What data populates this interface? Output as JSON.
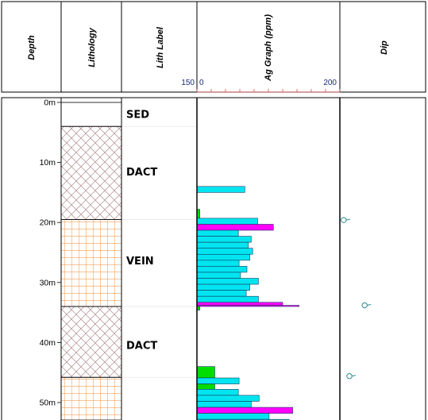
{
  "columns": {
    "depth": "Depth",
    "lithology": "Lithology",
    "lith_label": "Lith Label",
    "ag_graph": "Ag Graph (ppm)",
    "dip": "Dip"
  },
  "scale": {
    "lith_label_max": "150",
    "ag_min": "0",
    "ag_max": "200"
  },
  "colors": {
    "frame": "#000000",
    "dact_hatch": "#b08a8a",
    "vein_grid": "#f08a30",
    "bar_cyan": "#00e5f0",
    "bar_magenta": "#ff00ff",
    "bar_green": "#00dd00",
    "dip_symbol": "#2a8a90",
    "scale_text": "#1a2a80",
    "tick_red": "#e05050"
  },
  "chart_data": {
    "type": "bar",
    "depth_unit": "m",
    "depth_range": [
      0,
      53
    ],
    "depth_ticks": [
      {
        "value": 0,
        "label": "0m"
      },
      {
        "value": 10,
        "label": "10m"
      },
      {
        "value": 20,
        "label": "20m"
      },
      {
        "value": 30,
        "label": "30m"
      },
      {
        "value": 40,
        "label": "40m"
      },
      {
        "value": 50,
        "label": "50m"
      }
    ],
    "lithology": [
      {
        "label": "SED",
        "from": 0,
        "to": 4,
        "pattern": "blank"
      },
      {
        "label": "DACT",
        "from": 4,
        "to": 19.5,
        "pattern": "crosshatch"
      },
      {
        "label": "VEIN",
        "from": 19.5,
        "to": 34,
        "pattern": "grid"
      },
      {
        "label": "DACT",
        "from": 34,
        "to": 45.8,
        "pattern": "crosshatch"
      },
      {
        "label": "",
        "from": 45.8,
        "to": 53,
        "pattern": "grid"
      }
    ],
    "lith_label_positions": [
      1.9,
      11.5,
      26.3,
      40.4
    ],
    "ag_xlim": [
      0,
      200
    ],
    "ag_samples": [
      {
        "from": 14.0,
        "to": 15.0,
        "value": 67,
        "color": "cyan"
      },
      {
        "from": 17.8,
        "to": 19.3,
        "value": 4,
        "color": "green"
      },
      {
        "from": 19.3,
        "to": 20.3,
        "value": 85,
        "color": "cyan"
      },
      {
        "from": 20.3,
        "to": 21.3,
        "value": 107,
        "color": "magenta"
      },
      {
        "from": 21.3,
        "to": 22.3,
        "value": 58,
        "color": "cyan"
      },
      {
        "from": 22.3,
        "to": 23.3,
        "value": 76,
        "color": "cyan"
      },
      {
        "from": 23.3,
        "to": 24.3,
        "value": 72,
        "color": "cyan"
      },
      {
        "from": 24.3,
        "to": 25.3,
        "value": 78,
        "color": "cyan"
      },
      {
        "from": 25.3,
        "to": 26.3,
        "value": 74,
        "color": "cyan"
      },
      {
        "from": 26.3,
        "to": 27.3,
        "value": 59,
        "color": "cyan"
      },
      {
        "from": 27.3,
        "to": 28.3,
        "value": 70,
        "color": "cyan"
      },
      {
        "from": 28.3,
        "to": 29.3,
        "value": 61,
        "color": "cyan"
      },
      {
        "from": 29.3,
        "to": 30.3,
        "value": 86,
        "color": "cyan"
      },
      {
        "from": 30.3,
        "to": 31.3,
        "value": 74,
        "color": "cyan"
      },
      {
        "from": 31.3,
        "to": 32.3,
        "value": 69,
        "color": "cyan"
      },
      {
        "from": 32.3,
        "to": 33.3,
        "value": 86,
        "color": "cyan"
      },
      {
        "from": 33.3,
        "to": 33.8,
        "value": 120,
        "color": "magenta"
      },
      {
        "from": 33.8,
        "to": 34.0,
        "value": 143,
        "color": "magenta"
      },
      {
        "from": 34.0,
        "to": 34.6,
        "value": 4,
        "color": "green"
      },
      {
        "from": 44.0,
        "to": 45.9,
        "value": 25,
        "color": "green"
      },
      {
        "from": 45.9,
        "to": 46.9,
        "value": 59,
        "color": "cyan"
      },
      {
        "from": 46.9,
        "to": 47.8,
        "value": 25,
        "color": "green"
      },
      {
        "from": 47.8,
        "to": 48.8,
        "value": 58,
        "color": "cyan"
      },
      {
        "from": 48.8,
        "to": 49.8,
        "value": 87,
        "color": "cyan"
      },
      {
        "from": 49.8,
        "to": 50.8,
        "value": 76,
        "color": "cyan"
      },
      {
        "from": 50.8,
        "to": 51.8,
        "value": 134,
        "color": "magenta"
      },
      {
        "from": 51.8,
        "to": 52.8,
        "value": 101,
        "color": "cyan"
      },
      {
        "from": 52.8,
        "to": 53.0,
        "value": 129,
        "color": "cyan"
      }
    ],
    "dip_range": [
      0,
      90
    ],
    "dip_points": [
      {
        "depth": 19.6,
        "dip": 4
      },
      {
        "depth": 33.8,
        "dip": 26
      },
      {
        "depth": 45.6,
        "dip": 10
      }
    ]
  }
}
